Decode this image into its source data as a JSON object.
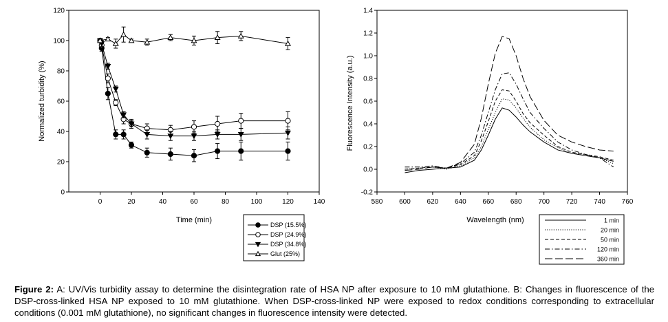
{
  "caption": {
    "label": "Figure 2:",
    "text": "A: UV/Vis turbidity assay to determine the disintegration rate of HSA NP after exposure to 10 mM glutathione. B: Changes in fluorescence of the DSP-cross-linked HSA NP exposed to 10 mM glutathione. When DSP-cross-linked NP were exposed to redox conditions corresponding to extracellular conditions (0.001 mM glutathione), no significant changes in fluorescence intensity were detected."
  },
  "chart_data": [
    {
      "type": "line",
      "xlabel": "Time (min)",
      "ylabel": "Normalized turbidity (%)",
      "xlim": [
        -20,
        140
      ],
      "ylim": [
        0,
        120
      ],
      "xticks": [
        0,
        20,
        40,
        60,
        80,
        100,
        120,
        140
      ],
      "yticks": [
        0,
        20,
        40,
        60,
        80,
        100,
        120
      ],
      "legend_position": "bottom-right, outside plot",
      "series": [
        {
          "name": "DSP (15.5%)",
          "marker": "filled-circle",
          "x": [
            0,
            1,
            5,
            10,
            15,
            20,
            30,
            45,
            60,
            75,
            90,
            120
          ],
          "y": [
            100,
            95,
            65,
            38,
            38,
            31,
            26,
            25,
            24,
            27,
            27,
            27
          ],
          "err": [
            1,
            2,
            4,
            3,
            3,
            2,
            3,
            4,
            4,
            5,
            6,
            6
          ]
        },
        {
          "name": "DSP (24.9%)",
          "marker": "open-circle",
          "x": [
            0,
            1,
            5,
            10,
            15,
            20,
            30,
            45,
            60,
            75,
            90,
            120
          ],
          "y": [
            100,
            97,
            75,
            59,
            48,
            45,
            42,
            41,
            43,
            45,
            47,
            47
          ],
          "err": [
            1,
            2,
            3,
            2,
            3,
            3,
            3,
            3,
            4,
            5,
            5,
            6
          ]
        },
        {
          "name": "DSP (34.8%)",
          "marker": "filled-triangle-down",
          "x": [
            0,
            1,
            5,
            10,
            15,
            20,
            30,
            45,
            60,
            75,
            90,
            120
          ],
          "y": [
            100,
            98,
            83,
            68,
            51,
            45,
            38,
            37,
            37,
            38,
            38,
            39
          ],
          "err": [
            1,
            2,
            2,
            2,
            2,
            2,
            3,
            3,
            3,
            3,
            4,
            4
          ]
        },
        {
          "name": "Glut (25%)",
          "marker": "open-triangle-up",
          "x": [
            0,
            5,
            10,
            15,
            20,
            30,
            45,
            60,
            75,
            90,
            120
          ],
          "y": [
            100,
            101,
            98,
            104,
            100,
            99,
            102,
            100,
            102,
            103,
            98
          ],
          "err": [
            1,
            1,
            3,
            5,
            1,
            2,
            2,
            3,
            4,
            3,
            4
          ]
        }
      ]
    },
    {
      "type": "line",
      "xlabel": "Wavelength (nm)",
      "ylabel": "Fluorescence Intensity (a.u.)",
      "xlim": [
        580,
        760
      ],
      "ylim": [
        -0.2,
        1.4
      ],
      "xticks": [
        580,
        600,
        620,
        640,
        660,
        680,
        700,
        720,
        740,
        760
      ],
      "yticks": [
        "-0.2",
        "0.0",
        "0.2",
        "0.4",
        "0.6",
        "0.8",
        "1.0",
        "1.2",
        "1.4"
      ],
      "legend_position": "bottom-right, outside plot",
      "series": [
        {
          "name": "1 min",
          "dash": "solid",
          "x": [
            600,
            610,
            620,
            630,
            640,
            650,
            655,
            660,
            665,
            670,
            675,
            680,
            685,
            690,
            700,
            710,
            720,
            730,
            740,
            750
          ],
          "y": [
            -0.03,
            -0.01,
            0.0,
            0.01,
            0.02,
            0.08,
            0.17,
            0.3,
            0.44,
            0.54,
            0.52,
            0.46,
            0.39,
            0.33,
            0.24,
            0.17,
            0.14,
            0.12,
            0.1,
            0.07
          ]
        },
        {
          "name": "20 min",
          "dash": "dotted",
          "x": [
            600,
            610,
            620,
            630,
            640,
            650,
            655,
            660,
            665,
            670,
            675,
            680,
            685,
            690,
            700,
            710,
            720,
            730,
            740,
            750
          ],
          "y": [
            0.0,
            0.01,
            0.02,
            0.0,
            0.03,
            0.1,
            0.2,
            0.35,
            0.5,
            0.62,
            0.61,
            0.54,
            0.45,
            0.37,
            0.26,
            0.19,
            0.14,
            0.13,
            0.1,
            0.05
          ]
        },
        {
          "name": "50 min",
          "dash": "dashed",
          "x": [
            600,
            610,
            620,
            630,
            640,
            650,
            655,
            660,
            665,
            670,
            675,
            680,
            685,
            690,
            700,
            710,
            720,
            730,
            740,
            750
          ],
          "y": [
            0.0,
            0.01,
            0.02,
            0.01,
            0.04,
            0.12,
            0.25,
            0.42,
            0.6,
            0.7,
            0.69,
            0.6,
            0.49,
            0.41,
            0.3,
            0.2,
            0.15,
            0.13,
            0.11,
            0.08
          ]
        },
        {
          "name": "120 min",
          "dash": "dash-dot",
          "x": [
            600,
            610,
            620,
            630,
            640,
            650,
            655,
            660,
            665,
            670,
            675,
            680,
            685,
            690,
            700,
            710,
            720,
            730,
            740,
            750
          ],
          "y": [
            0.02,
            0.02,
            0.03,
            0.01,
            0.05,
            0.15,
            0.3,
            0.5,
            0.7,
            0.84,
            0.85,
            0.75,
            0.62,
            0.5,
            0.36,
            0.24,
            0.17,
            0.13,
            0.1,
            0.02
          ]
        },
        {
          "name": "360 min",
          "dash": "long-dash",
          "x": [
            600,
            610,
            620,
            630,
            640,
            650,
            655,
            660,
            665,
            670,
            675,
            680,
            685,
            690,
            700,
            710,
            720,
            730,
            740,
            750
          ],
          "y": [
            -0.01,
            0.0,
            0.02,
            0.01,
            0.06,
            0.22,
            0.45,
            0.75,
            1.02,
            1.17,
            1.15,
            1.0,
            0.8,
            0.64,
            0.43,
            0.3,
            0.24,
            0.2,
            0.17,
            0.16
          ]
        }
      ]
    }
  ]
}
